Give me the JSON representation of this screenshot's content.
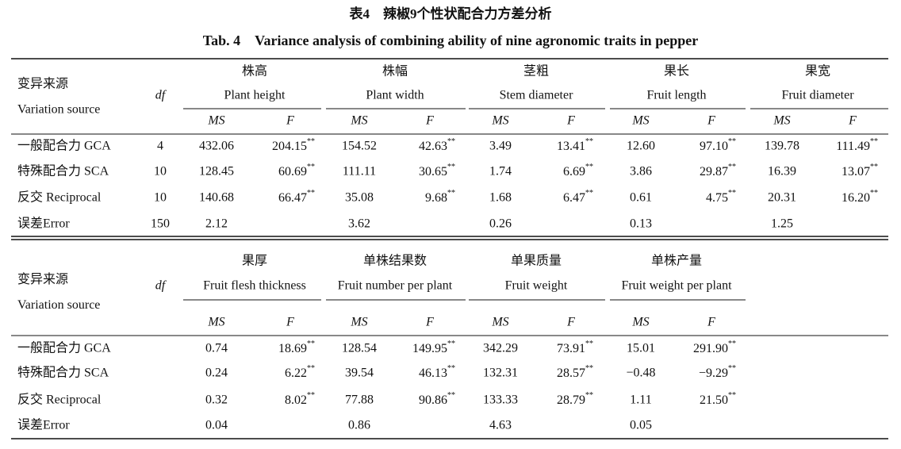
{
  "title_cn": "表4　辣椒9个性状配合力方差分析",
  "title_en": "Tab. 4　Variance analysis of combining ability of nine agronomic traits in pepper",
  "tables": [
    {
      "source_cn": "变异来源",
      "source_en": "Variation source",
      "df_label": "df",
      "ms_label": "MS",
      "f_label": "F",
      "traits": [
        {
          "cn": "株高",
          "en": "Plant height"
        },
        {
          "cn": "株幅",
          "en": "Plant width"
        },
        {
          "cn": "茎粗",
          "en": "Stem diameter"
        },
        {
          "cn": "果长",
          "en": "Fruit length"
        },
        {
          "cn": "果宽",
          "en": "Fruit diameter"
        }
      ],
      "rows": [
        {
          "source": "一般配合力 GCA",
          "df": "4",
          "cells": [
            {
              "ms": "432.06",
              "f": "204.15",
              "sig": "**"
            },
            {
              "ms": "154.52",
              "f": "42.63",
              "sig": "**"
            },
            {
              "ms": "3.49",
              "f": "13.41",
              "sig": "**"
            },
            {
              "ms": "12.60",
              "f": "97.10",
              "sig": "**"
            },
            {
              "ms": "139.78",
              "f": "111.49",
              "sig": "**"
            }
          ]
        },
        {
          "source": "特殊配合力 SCA",
          "df": "10",
          "cells": [
            {
              "ms": "128.45",
              "f": "60.69",
              "sig": "**"
            },
            {
              "ms": "111.11",
              "f": "30.65",
              "sig": "**"
            },
            {
              "ms": "1.74",
              "f": "6.69",
              "sig": "**"
            },
            {
              "ms": "3.86",
              "f": "29.87",
              "sig": "**"
            },
            {
              "ms": "16.39",
              "f": "13.07",
              "sig": "**"
            }
          ]
        },
        {
          "source": "反交 Reciprocal",
          "df": "10",
          "cells": [
            {
              "ms": "140.68",
              "f": "66.47",
              "sig": "**"
            },
            {
              "ms": "35.08",
              "f": "9.68",
              "sig": "**"
            },
            {
              "ms": "1.68",
              "f": "6.47",
              "sig": "**"
            },
            {
              "ms": "0.61",
              "f": "4.75",
              "sig": "**"
            },
            {
              "ms": "20.31",
              "f": "16.20",
              "sig": "**"
            }
          ]
        },
        {
          "source": "误差Error",
          "df": "150",
          "cells": [
            {
              "ms": "2.12"
            },
            {
              "ms": "3.62"
            },
            {
              "ms": "0.26"
            },
            {
              "ms": "0.13"
            },
            {
              "ms": "1.25"
            }
          ]
        }
      ]
    },
    {
      "source_cn": "变异来源",
      "source_en": "Variation source",
      "df_label": "df",
      "ms_label": "MS",
      "f_label": "F",
      "traits": [
        {
          "cn": "果厚",
          "en": "Fruit flesh thickness"
        },
        {
          "cn": "单株结果数",
          "en": "Fruit number per plant"
        },
        {
          "cn": "单果质量",
          "en": "Fruit weight"
        },
        {
          "cn": "单株产量",
          "en": "Fruit weight per plant"
        }
      ],
      "rows": [
        {
          "source": "一般配合力 GCA",
          "cells": [
            {
              "ms": "0.74",
              "f": "18.69",
              "sig": "**"
            },
            {
              "ms": "128.54",
              "f": "149.95",
              "sig": "**"
            },
            {
              "ms": "342.29",
              "f": "73.91",
              "sig": "**"
            },
            {
              "ms": "15.01",
              "f": "291.90",
              "sig": "**"
            }
          ]
        },
        {
          "source": "特殊配合力 SCA",
          "cells": [
            {
              "ms": "0.24",
              "f": "6.22",
              "sig": "**"
            },
            {
              "ms": "39.54",
              "f": "46.13",
              "sig": "**"
            },
            {
              "ms": "132.31",
              "f": "28.57",
              "sig": "**"
            },
            {
              "ms": "−0.48",
              "f": "−9.29",
              "sig": "**"
            }
          ]
        },
        {
          "source": "反交 Reciprocal",
          "cells": [
            {
              "ms": "0.32",
              "f": "8.02",
              "sig": "**"
            },
            {
              "ms": "77.88",
              "f": "90.86",
              "sig": "**"
            },
            {
              "ms": "133.33",
              "f": "28.79",
              "sig": "**"
            },
            {
              "ms": "1.11",
              "f": "21.50",
              "sig": "**"
            }
          ]
        },
        {
          "source": "误差Error",
          "cells": [
            {
              "ms": "0.04"
            },
            {
              "ms": "0.86"
            },
            {
              "ms": "4.63"
            },
            {
              "ms": "0.05"
            }
          ]
        }
      ]
    }
  ]
}
